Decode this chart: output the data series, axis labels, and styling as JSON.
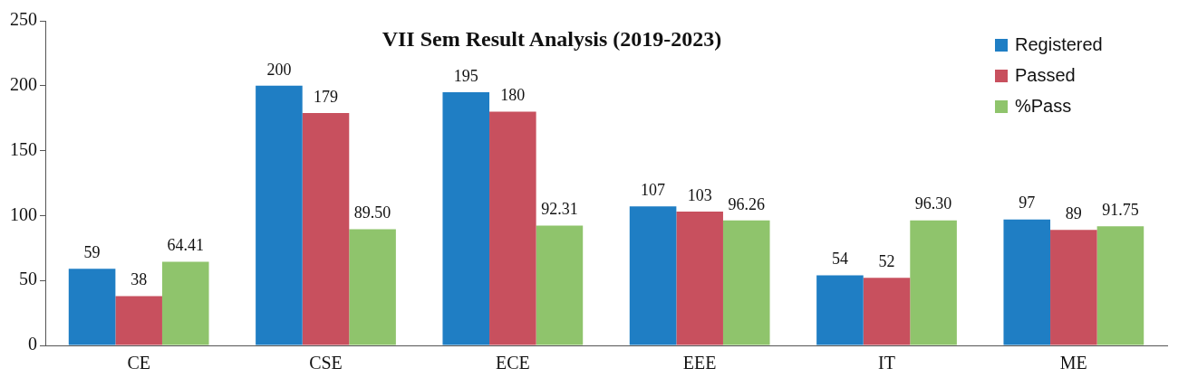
{
  "chart_data": {
    "type": "bar",
    "title": "VII Sem Result Analysis (2019-2023)",
    "categories": [
      "CE",
      "CSE",
      "ECE",
      "EEE",
      "IT",
      "ME"
    ],
    "series": [
      {
        "name": "Registered",
        "color": "#1f7ec4",
        "values": [
          59,
          200,
          195,
          107,
          54,
          97
        ],
        "value_labels": [
          "59",
          "200",
          "195",
          "107",
          "54",
          "97"
        ]
      },
      {
        "name": "Passed",
        "color": "#c8505e",
        "values": [
          38,
          179,
          180,
          103,
          52,
          89
        ],
        "value_labels": [
          "38",
          "179",
          "180",
          "103",
          "52",
          "89"
        ]
      },
      {
        "name": "%Pass",
        "color": "#8fc46c",
        "values": [
          64.41,
          89.5,
          92.31,
          96.26,
          96.3,
          91.75
        ],
        "value_labels": [
          "64.41",
          "89.50",
          "92.31",
          "96.26",
          "96.30",
          "91.75"
        ]
      }
    ],
    "ylim": [
      0,
      250
    ],
    "yticks": [
      0,
      50,
      100,
      150,
      200,
      250
    ],
    "grid": false,
    "legend": "top right"
  }
}
